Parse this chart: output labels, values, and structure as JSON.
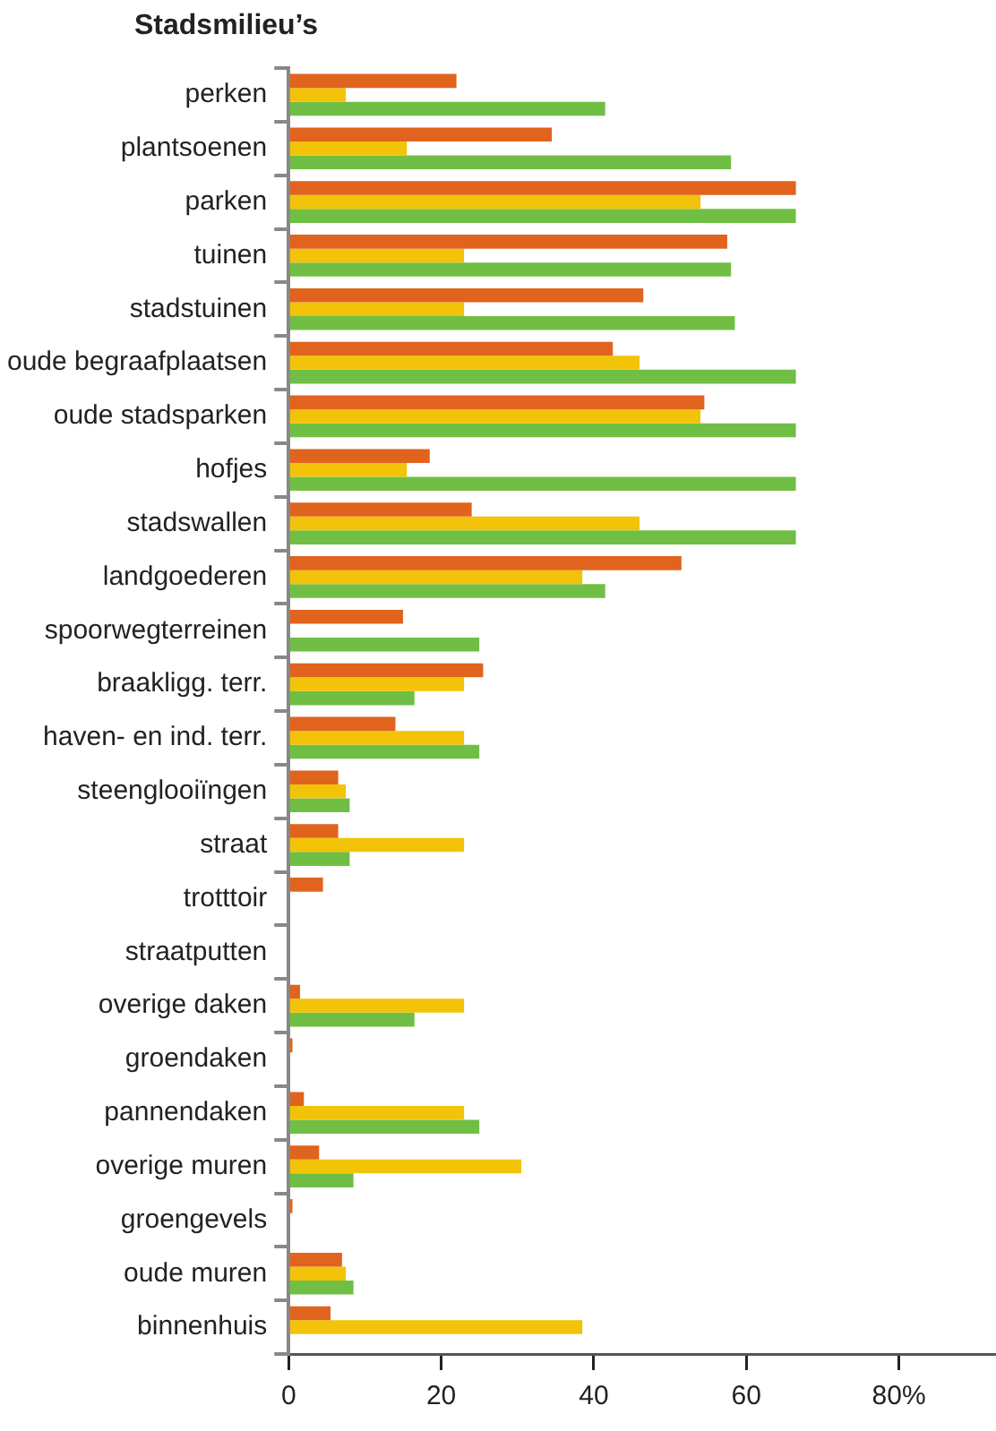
{
  "chart_data": {
    "type": "bar",
    "orientation": "horizontal",
    "title": "Stadsmilieu’s",
    "categories": [
      "perken",
      "plantsoenen",
      "parken",
      "tuinen",
      "stadstuinen",
      "oude begraafplaatsen",
      "oude stadsparken",
      "hofjes",
      "stadswallen",
      "landgoederen",
      "spoorwegterreinen",
      "braakligg. terr.",
      "haven- en ind. terr.",
      "steenglooiïngen",
      "straat",
      "trotttoir",
      "straatputten",
      "overige daken",
      "groendaken",
      "pannendaken",
      "overige muren",
      "groengevels",
      "oude muren",
      "binnenhuis"
    ],
    "series": [
      {
        "color": "#e0641e",
        "values": [
          22,
          34.5,
          66.5,
          57.5,
          46.5,
          42.5,
          54.5,
          18.5,
          24,
          51.5,
          15,
          25.5,
          14,
          6.5,
          6.5,
          4.5,
          null,
          1.5,
          0.5,
          2,
          4,
          0.5,
          7,
          5.5
        ]
      },
      {
        "color": "#f2c308",
        "values": [
          7.5,
          15.5,
          54,
          23,
          23,
          46,
          54,
          15.5,
          46,
          38.5,
          null,
          23,
          23,
          7.5,
          23,
          null,
          null,
          23,
          null,
          23,
          30.5,
          null,
          7.5,
          38.5
        ]
      },
      {
        "color": "#70bf44",
        "values": [
          41.5,
          58,
          66.5,
          58,
          58.5,
          66.5,
          66.5,
          66.5,
          66.5,
          41.5,
          25,
          16.5,
          25,
          8,
          8,
          null,
          null,
          16.5,
          null,
          25,
          8.5,
          null,
          8.5,
          null
        ]
      }
    ],
    "xlim": [
      0,
      92.5
    ],
    "xticks": [
      0,
      20,
      40,
      60,
      {
        "value": 80,
        "label": "80%"
      }
    ],
    "grid": false,
    "legend": false
  }
}
